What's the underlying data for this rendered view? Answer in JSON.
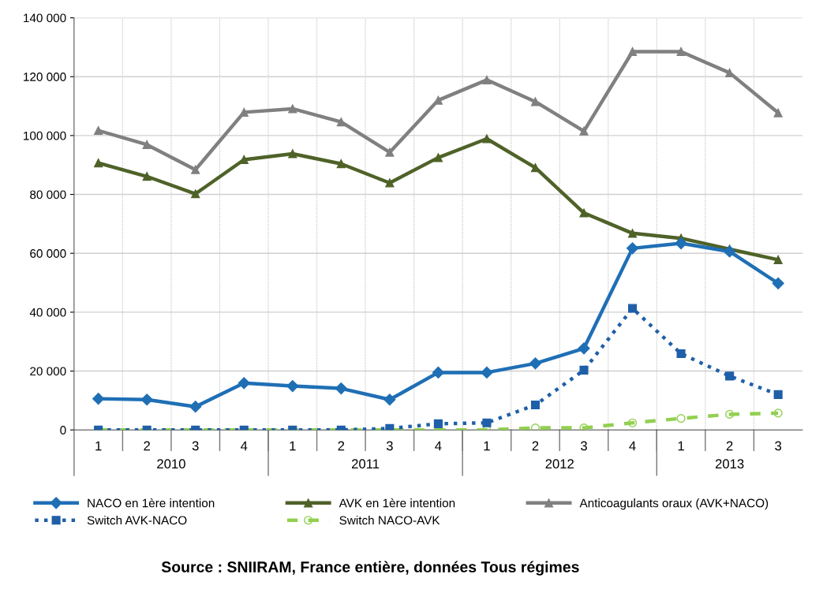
{
  "chart_data": {
    "type": "line",
    "categories": [
      "1",
      "2",
      "3",
      "4",
      "1",
      "2",
      "3",
      "4",
      "1",
      "2",
      "3",
      "4",
      "1",
      "2",
      "3"
    ],
    "series": [
      {
        "name": "NACO en 1ère intention",
        "color": "#1f6fb5",
        "marker": "diamond",
        "line_style": "solid",
        "values": [
          10600,
          10300,
          7900,
          15900,
          14900,
          14100,
          10300,
          19500,
          19500,
          22600,
          27700,
          61700,
          63400,
          60600,
          49800
        ]
      },
      {
        "name": "Switch AVK-NACO",
        "color": "#1f5fa8",
        "marker": "square",
        "line_style": "dotted",
        "values": [
          0,
          0,
          0,
          0,
          0,
          0,
          500,
          2100,
          2400,
          8500,
          20300,
          41300,
          25900,
          18300,
          12000
        ]
      },
      {
        "name": "AVK en 1ère intention",
        "color": "#4f6228",
        "marker": "triangle",
        "line_style": "solid",
        "values": [
          90700,
          86100,
          80200,
          91800,
          93800,
          90400,
          83900,
          92500,
          98900,
          89100,
          73700,
          66800,
          65100,
          61400,
          57800
        ]
      },
      {
        "name": "Switch NACO-AVK",
        "color": "#92d050",
        "marker": "circle",
        "line_style": "dashed",
        "values": [
          0,
          0,
          0,
          0,
          0,
          0,
          0,
          0,
          0,
          700,
          700,
          2400,
          3900,
          5300,
          5700
        ]
      },
      {
        "name": "Anticoagulants oraux (AVK+NACO)",
        "color": "#808080",
        "marker": "triangle",
        "line_style": "solid",
        "values": [
          101700,
          96900,
          88400,
          107900,
          109100,
          104600,
          94300,
          112000,
          118900,
          111500,
          101500,
          128500,
          128500,
          121300,
          107700
        ]
      }
    ],
    "ylim": [
      0,
      140000
    ],
    "yticks": [
      {
        "value": 0,
        "label": "0"
      },
      {
        "value": 20000,
        "label": "20 000"
      },
      {
        "value": 40000,
        "label": "40 000"
      },
      {
        "value": 60000,
        "label": "60 000"
      },
      {
        "value": 80000,
        "label": "80 000"
      },
      {
        "value": 100000,
        "label": "100 000"
      },
      {
        "value": 120000,
        "label": "120 000"
      },
      {
        "value": 140000,
        "label": "140 000"
      }
    ],
    "grid": true,
    "legend": "bottom",
    "annotations": [
      "2010",
      "2011",
      "2012",
      "2013",
      "Source : SNIIRAM, France entière, données Tous régimes"
    ]
  }
}
